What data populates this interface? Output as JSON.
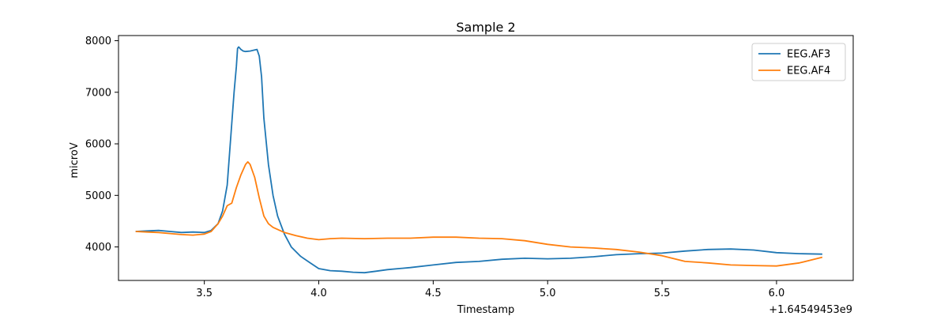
{
  "chart_data": {
    "type": "line",
    "title": "Sample 2",
    "xlabel": "Timestamp",
    "ylabel": "microV",
    "x_offset_label": "+1.64549453e9",
    "xlim": [
      3.125,
      6.335
    ],
    "ylim": [
      3350,
      8100
    ],
    "xticks": [
      3.5,
      4.0,
      4.5,
      5.0,
      5.5,
      6.0
    ],
    "xtick_labels": [
      "3.5",
      "4.0",
      "4.5",
      "5.0",
      "5.5",
      "6.0"
    ],
    "yticks": [
      4000,
      5000,
      6000,
      7000,
      8000
    ],
    "ytick_labels": [
      "4000",
      "5000",
      "6000",
      "7000",
      "8000"
    ],
    "grid": false,
    "legend_position": "top-right",
    "series": [
      {
        "name": "EEG.AF3",
        "color": "#1f77b4",
        "x": [
          3.2,
          3.25,
          3.3,
          3.35,
          3.4,
          3.45,
          3.5,
          3.53,
          3.56,
          3.58,
          3.6,
          3.62,
          3.63,
          3.64,
          3.645,
          3.65,
          3.66,
          3.67,
          3.68,
          3.7,
          3.72,
          3.73,
          3.74,
          3.75,
          3.76,
          3.78,
          3.8,
          3.82,
          3.85,
          3.88,
          3.92,
          3.96,
          4.0,
          4.05,
          4.1,
          4.15,
          4.2,
          4.25,
          4.3,
          4.4,
          4.5,
          4.6,
          4.7,
          4.8,
          4.9,
          5.0,
          5.1,
          5.2,
          5.3,
          5.4,
          5.5,
          5.6,
          5.7,
          5.8,
          5.9,
          6.0,
          6.1,
          6.2
        ],
        "y": [
          4300,
          4310,
          4320,
          4300,
          4280,
          4290,
          4280,
          4320,
          4450,
          4700,
          5200,
          6400,
          7000,
          7500,
          7850,
          7880,
          7830,
          7800,
          7790,
          7800,
          7820,
          7830,
          7700,
          7300,
          6500,
          5600,
          5000,
          4600,
          4250,
          4000,
          3820,
          3700,
          3580,
          3540,
          3530,
          3510,
          3500,
          3530,
          3560,
          3600,
          3650,
          3700,
          3720,
          3760,
          3780,
          3770,
          3780,
          3810,
          3850,
          3870,
          3880,
          3920,
          3950,
          3960,
          3940,
          3890,
          3870,
          3860
        ]
      },
      {
        "name": "EEG.AF4",
        "color": "#ff7f0e",
        "x": [
          3.2,
          3.25,
          3.3,
          3.35,
          3.4,
          3.45,
          3.5,
          3.53,
          3.56,
          3.58,
          3.6,
          3.62,
          3.64,
          3.66,
          3.68,
          3.69,
          3.7,
          3.72,
          3.74,
          3.76,
          3.78,
          3.8,
          3.85,
          3.9,
          3.95,
          4.0,
          4.05,
          4.1,
          4.2,
          4.3,
          4.4,
          4.5,
          4.6,
          4.7,
          4.8,
          4.9,
          5.0,
          5.1,
          5.2,
          5.3,
          5.4,
          5.5,
          5.6,
          5.7,
          5.8,
          5.9,
          6.0,
          6.1,
          6.2
        ],
        "y": [
          4300,
          4290,
          4280,
          4260,
          4240,
          4230,
          4250,
          4300,
          4450,
          4600,
          4800,
          4850,
          5150,
          5400,
          5600,
          5650,
          5600,
          5350,
          4950,
          4600,
          4450,
          4380,
          4280,
          4220,
          4170,
          4140,
          4160,
          4170,
          4160,
          4170,
          4170,
          4190,
          4190,
          4170,
          4160,
          4120,
          4050,
          4000,
          3980,
          3950,
          3900,
          3830,
          3720,
          3690,
          3650,
          3640,
          3630,
          3690,
          3800
        ]
      }
    ]
  }
}
